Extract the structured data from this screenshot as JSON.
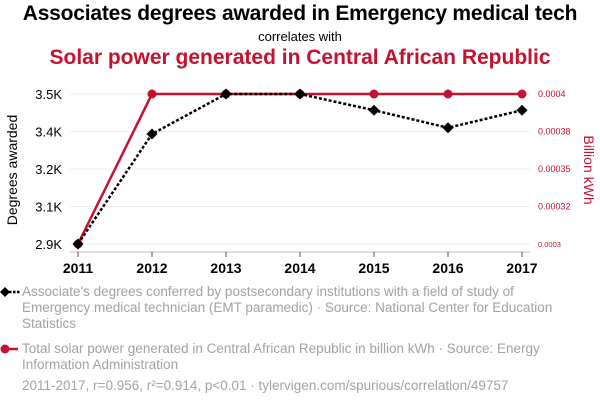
{
  "header": {
    "title": "Associates degrees awarded in Emergency medical tech",
    "connector": "correlates with",
    "subtitle": "Solar power generated in Central African Republic"
  },
  "colors": {
    "series1": "#000000",
    "series2": "#c41230",
    "grid": "#eeeeee",
    "axis": "#bbbbbb",
    "muted_text": "#a2a2a2"
  },
  "legend": {
    "series1_text": "Associate's degrees conferred by postsecondary institutions with a field of study of Emergency medical technician (EMT paramedic) · Source: National Center for Education Statistics",
    "series2_text": "Total solar power generated in Central African Republic in billion kWh · Source: Energy Information Administration"
  },
  "footer": {
    "stats": "2011-2017, r=0.956, r²=0.914, p<0.01 · tylervigen.com/spurious/correlation/49757"
  },
  "chart_data": {
    "type": "line",
    "x": [
      2011,
      2012,
      2013,
      2014,
      2015,
      2016,
      2017
    ],
    "x_tick_labels": [
      "2011",
      "2012",
      "2013",
      "2014",
      "2015",
      "2016",
      "2017"
    ],
    "series": [
      {
        "name": "Associate's degrees conferred (EMT paramedic)",
        "axis": "left",
        "style": "dotted",
        "marker": "diamond",
        "values": [
          2900,
          3340,
          3500,
          3500,
          3435,
          3365,
          3435
        ]
      },
      {
        "name": "Total solar power generated in Central African Republic (billion kWh)",
        "axis": "right",
        "style": "solid",
        "marker": "circle",
        "values": [
          0.0003,
          0.0004,
          0.0004,
          0.0004,
          0.0004,
          0.0004,
          0.0004
        ]
      }
    ],
    "left_axis": {
      "label": "Degrees awarded",
      "range": [
        2900,
        3500
      ],
      "ticks": [
        2900,
        3050,
        3200,
        3350,
        3500
      ],
      "tick_labels": [
        "2.9K",
        "3.1K",
        "3.2K",
        "3.4K",
        "3.5K"
      ]
    },
    "right_axis": {
      "label": "Billion kWh",
      "range": [
        0.0003,
        0.0004
      ],
      "ticks": [
        0.0003,
        0.000325,
        0.00035,
        0.000375,
        0.0004
      ],
      "tick_labels": [
        "0.0003",
        "0.00032",
        "0.00035",
        "0.00038",
        "0.0004"
      ]
    },
    "grid": true
  }
}
